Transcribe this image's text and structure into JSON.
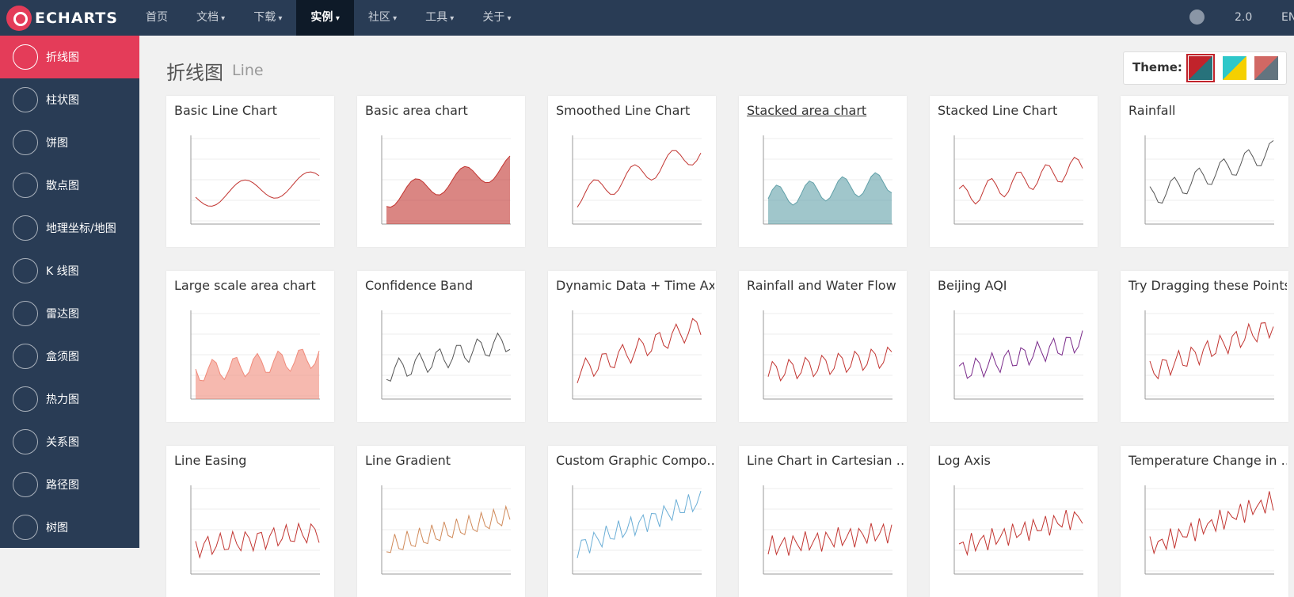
{
  "navbar": {
    "logo": "ECHARTS",
    "menu": [
      "首页",
      "文档",
      "下载",
      "实例",
      "社区",
      "工具",
      "关于"
    ],
    "version": "2.0",
    "language": "EN"
  },
  "sidebar": {
    "items": [
      "折线图",
      "柱状图",
      "饼图",
      "散点图",
      "地理坐标/地图",
      "K 线图",
      "雷达图",
      "盒须图",
      "热力图",
      "关系图",
      "路径图",
      "树图"
    ]
  },
  "header": {
    "title": "折线图",
    "subtitle": "Line"
  },
  "theme": {
    "label": "Theme:"
  },
  "cards": [
    {
      "title": "Basic Line Chart"
    },
    {
      "title": "Basic area chart"
    },
    {
      "title": "Smoothed Line Chart"
    },
    {
      "title": "Stacked area chart"
    },
    {
      "title": "Stacked Line Chart"
    },
    {
      "title": "Rainfall"
    },
    {
      "title": "Large scale area chart"
    },
    {
      "title": "Confidence Band"
    },
    {
      "title": "Dynamic Data + Time Axis"
    },
    {
      "title": "Rainfall and Water Flow"
    },
    {
      "title": "Beijing AQI"
    },
    {
      "title": "Try Dragging these Points"
    },
    {
      "title": "Line Easing"
    },
    {
      "title": "Line Gradient"
    },
    {
      "title": "Custom Graphic Compo…"
    },
    {
      "title": "Line Chart in Cartesian …"
    },
    {
      "title": "Log Axis"
    },
    {
      "title": "Temperature Change in …"
    }
  ]
}
